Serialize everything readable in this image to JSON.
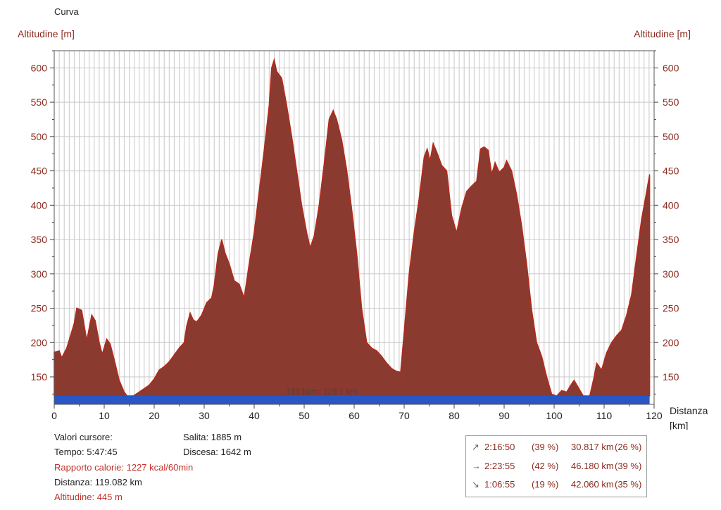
{
  "chart_data": {
    "type": "area",
    "title": "Curva",
    "ylabel_left": "Altitudine [m]",
    "ylabel_right": "Altitudine [m]",
    "xlabel": "Distanza",
    "xlabel_unit": "[km]",
    "xlim": [
      0,
      120
    ],
    "ylim": [
      110,
      625
    ],
    "x_ticks": [
      "0",
      "10",
      "20",
      "30",
      "40",
      "50",
      "60",
      "70",
      "80",
      "90",
      "100",
      "110",
      "120"
    ],
    "y_ticks": [
      "150",
      "200",
      "250",
      "300",
      "350",
      "400",
      "450",
      "500",
      "550",
      "600"
    ],
    "grid": true,
    "fill_color": "#8b3a30",
    "line_color": "#b52a1a",
    "band_color": "#2a55c4",
    "band_label": "133 bpm: 119.1 km",
    "profile": [
      [
        0,
        186
      ],
      [
        1,
        188
      ],
      [
        1.5,
        178
      ],
      [
        2.5,
        192
      ],
      [
        4,
        228
      ],
      [
        4.5,
        250
      ],
      [
        5.5,
        247
      ],
      [
        6.5,
        203
      ],
      [
        7.5,
        240
      ],
      [
        8.2,
        232
      ],
      [
        9,
        200
      ],
      [
        9.6,
        183
      ],
      [
        10.5,
        205
      ],
      [
        11.2,
        198
      ],
      [
        12,
        175
      ],
      [
        13,
        145
      ],
      [
        14,
        128
      ],
      [
        15,
        118
      ],
      [
        16,
        123
      ],
      [
        17,
        128
      ],
      [
        18,
        133
      ],
      [
        19,
        138
      ],
      [
        20,
        147
      ],
      [
        21,
        160
      ],
      [
        22,
        165
      ],
      [
        23,
        172
      ],
      [
        24,
        182
      ],
      [
        25,
        192
      ],
      [
        26,
        200
      ],
      [
        26.5,
        224
      ],
      [
        27.2,
        243
      ],
      [
        27.8,
        233
      ],
      [
        28.5,
        230
      ],
      [
        29.5,
        240
      ],
      [
        30.5,
        258
      ],
      [
        31.5,
        265
      ],
      [
        32,
        283
      ],
      [
        32.8,
        330
      ],
      [
        33.5,
        350
      ],
      [
        34.2,
        330
      ],
      [
        35,
        315
      ],
      [
        36,
        290
      ],
      [
        37,
        285
      ],
      [
        38,
        265
      ],
      [
        39,
        315
      ],
      [
        40,
        360
      ],
      [
        41,
        420
      ],
      [
        42,
        480
      ],
      [
        43,
        545
      ],
      [
        43.5,
        600
      ],
      [
        44,
        612
      ],
      [
        44.5,
        595
      ],
      [
        45.5,
        585
      ],
      [
        46.5,
        545
      ],
      [
        47.5,
        500
      ],
      [
        48.5,
        450
      ],
      [
        49.5,
        400
      ],
      [
        50.5,
        360
      ],
      [
        51.2,
        338
      ],
      [
        52,
        355
      ],
      [
        53,
        400
      ],
      [
        54,
        460
      ],
      [
        55,
        525
      ],
      [
        55.8,
        538
      ],
      [
        56.5,
        525
      ],
      [
        57.5,
        495
      ],
      [
        58.5,
        452
      ],
      [
        59.5,
        395
      ],
      [
        60.5,
        330
      ],
      [
        61.5,
        250
      ],
      [
        62.5,
        200
      ],
      [
        63.5,
        192
      ],
      [
        64.5,
        188
      ],
      [
        65.5,
        180
      ],
      [
        66.5,
        170
      ],
      [
        67.5,
        162
      ],
      [
        68.5,
        158
      ],
      [
        69.3,
        157
      ],
      [
        70,
        215
      ],
      [
        71,
        300
      ],
      [
        72,
        360
      ],
      [
        73,
        410
      ],
      [
        74,
        470
      ],
      [
        74.6,
        482
      ],
      [
        75.2,
        465
      ],
      [
        75.8,
        490
      ],
      [
        76.5,
        478
      ],
      [
        77.5,
        458
      ],
      [
        78.5,
        450
      ],
      [
        79.5,
        385
      ],
      [
        80.5,
        360
      ],
      [
        81.5,
        395
      ],
      [
        82.5,
        420
      ],
      [
        83.5,
        428
      ],
      [
        84.5,
        435
      ],
      [
        85.3,
        482
      ],
      [
        86,
        485
      ],
      [
        86.8,
        480
      ],
      [
        87.5,
        445
      ],
      [
        88.2,
        462
      ],
      [
        89,
        448
      ],
      [
        90,
        455
      ],
      [
        90.5,
        465
      ],
      [
        91.5,
        450
      ],
      [
        92.5,
        415
      ],
      [
        93.5,
        370
      ],
      [
        94.5,
        315
      ],
      [
        95.5,
        248
      ],
      [
        96.5,
        200
      ],
      [
        97.5,
        180
      ],
      [
        98.5,
        150
      ],
      [
        99.5,
        125
      ],
      [
        100.5,
        122
      ],
      [
        101.5,
        130
      ],
      [
        102.5,
        128
      ],
      [
        103.5,
        140
      ],
      [
        104,
        145
      ],
      [
        104.8,
        135
      ],
      [
        106,
        120
      ],
      [
        107,
        118
      ],
      [
        108,
        150
      ],
      [
        108.5,
        170
      ],
      [
        109.5,
        160
      ],
      [
        110.5,
        185
      ],
      [
        111.5,
        200
      ],
      [
        112.5,
        210
      ],
      [
        113.5,
        218
      ],
      [
        114.5,
        240
      ],
      [
        115.5,
        270
      ],
      [
        116.5,
        325
      ],
      [
        117.5,
        380
      ],
      [
        118.5,
        420
      ],
      [
        119.1,
        445
      ]
    ]
  },
  "info": {
    "cursor_title": "Valori cursore:",
    "tempo": "Tempo: 5:47:45",
    "calorie": "Rapporto calorie: 1227 kcal/60min",
    "distanza": "Distanza: 119.082 km",
    "altitudine": "Altitudine: 445 m",
    "salita": "Salita: 1885 m",
    "discesa": "Discesa: 1642 m"
  },
  "summary": [
    {
      "icon": "arrow-up-right-icon",
      "glyph": "↗",
      "time": "2:16:50",
      "time_pct": "(39 %)",
      "dist": "30.817 km",
      "dist_pct": "(26 %)"
    },
    {
      "icon": "arrow-right-icon",
      "glyph": "→",
      "time": "2:23:55",
      "time_pct": "(42 %)",
      "dist": "46.180 km",
      "dist_pct": "(39 %)"
    },
    {
      "icon": "arrow-down-right-icon",
      "glyph": "↘",
      "time": "1:06:55",
      "time_pct": "(19 %)",
      "dist": "42.060 km",
      "dist_pct": "(35 %)"
    }
  ]
}
